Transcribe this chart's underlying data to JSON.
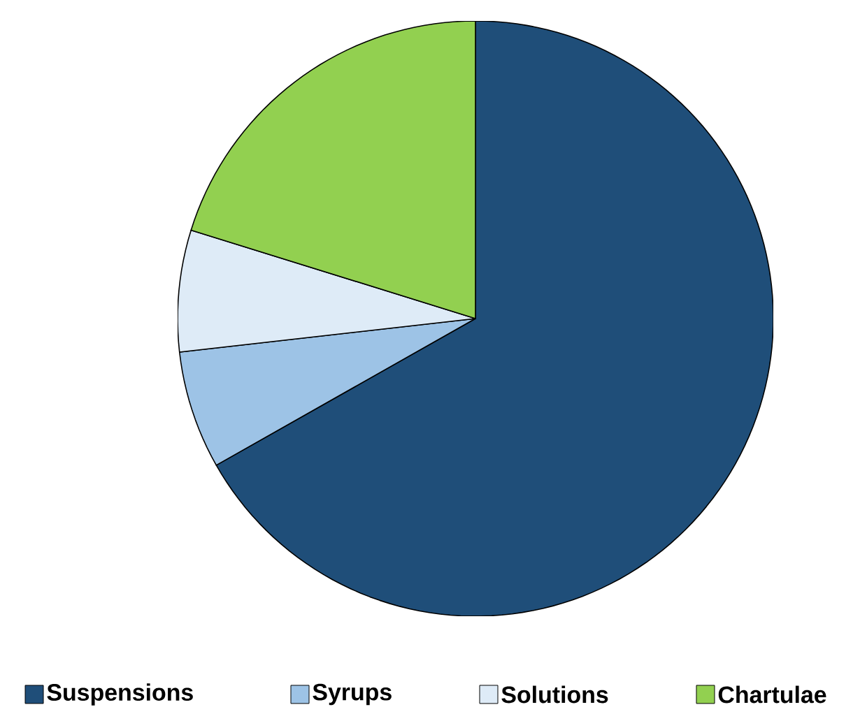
{
  "chart_data": {
    "type": "pie",
    "categories": [
      "Suspensions",
      "Syrups",
      "Solutions",
      "Chartulae"
    ],
    "values": [
      66.8,
      6.4,
      6.6,
      20.2
    ],
    "colors": [
      "#1f4e79",
      "#9dc3e6",
      "#deebf7",
      "#92d050"
    ],
    "legend": "bottom"
  }
}
